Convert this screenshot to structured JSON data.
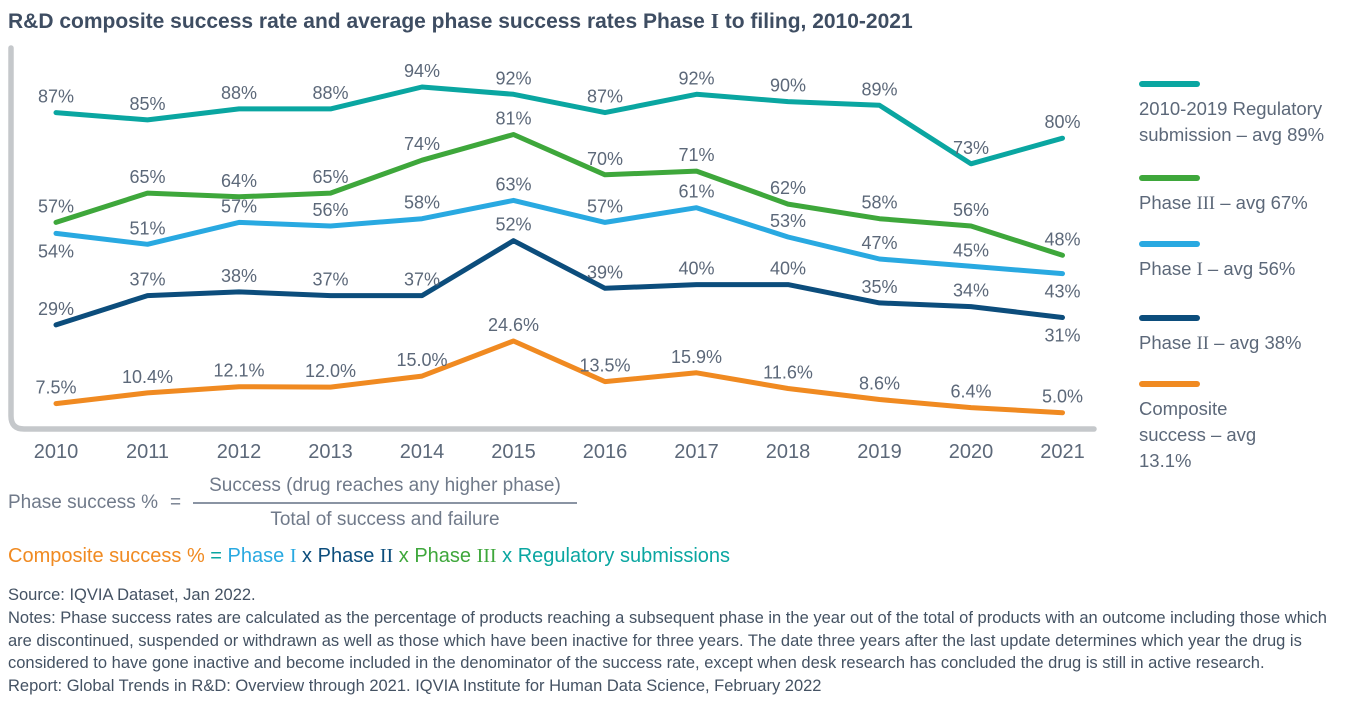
{
  "title": "R&D composite success rate and average phase success rates Phase I to filing, 2010-2021",
  "chart_data": {
    "type": "line",
    "x": [
      "2010",
      "2011",
      "2012",
      "2013",
      "2014",
      "2015",
      "2016",
      "2017",
      "2018",
      "2019",
      "2020",
      "2021"
    ],
    "xlabel": "",
    "ylabel": "",
    "ylim": [
      0,
      100
    ],
    "grid": false,
    "legend_position": "right",
    "colors": {
      "teal": "#0AA6A1",
      "green": "#3EA73B",
      "light_blue": "#29A9E1",
      "navy": "#0C4D7C",
      "orange": "#F08A21",
      "axis": "#C5C8CB",
      "label_text": "#5C6879"
    },
    "series": [
      {
        "name": "Regulatory submission",
        "legend_label": "2010-2019 Regulatory submission – avg 89%",
        "avg": 89,
        "color": "#0AA6A1",
        "values": [
          87,
          85,
          88,
          88,
          94,
          92,
          87,
          92,
          90,
          89,
          73,
          80
        ],
        "labels": [
          "87%",
          "85%",
          "88%",
          "88%",
          "94%",
          "92%",
          "87%",
          "92%",
          "90%",
          "89%",
          "73%",
          "80%"
        ],
        "label_below": []
      },
      {
        "name": "Phase III",
        "legend_label": "Phase III – avg 67%",
        "avg": 67,
        "color": "#3EA73B",
        "values": [
          57,
          65,
          64,
          65,
          74,
          81,
          70,
          71,
          62,
          58,
          56,
          48
        ],
        "labels": [
          "57%",
          "65%",
          "64%",
          "65%",
          "74%",
          "81%",
          "70%",
          "71%",
          "62%",
          "58%",
          "56%",
          "48%"
        ],
        "label_below": []
      },
      {
        "name": "Phase I",
        "legend_label": "Phase I – avg 56%",
        "avg": 56,
        "color": "#29A9E1",
        "values": [
          54,
          51,
          57,
          56,
          58,
          63,
          57,
          61,
          53,
          47,
          45,
          43
        ],
        "labels": [
          "54%",
          "51%",
          "57%",
          "56%",
          "58%",
          "63%",
          "57%",
          "61%",
          "53%",
          "47%",
          "45%",
          "43%"
        ],
        "label_below": [
          0,
          11
        ]
      },
      {
        "name": "Phase II",
        "legend_label": "Phase II – avg 38%",
        "avg": 38,
        "color": "#0C4D7C",
        "values": [
          29,
          37,
          38,
          37,
          37,
          52,
          39,
          40,
          40,
          35,
          34,
          31
        ],
        "labels": [
          "29%",
          "37%",
          "38%",
          "37%",
          "37%",
          "52%",
          "39%",
          "40%",
          "40%",
          "35%",
          "34%",
          "31%"
        ],
        "label_below": [
          11
        ]
      },
      {
        "name": "Composite success",
        "legend_label": "Composite success – avg 13.1%",
        "avg": 13.1,
        "color": "#F08A21",
        "values": [
          7.5,
          10.4,
          12.1,
          12.0,
          15.0,
          24.6,
          13.5,
          15.9,
          11.6,
          8.6,
          6.4,
          5.0
        ],
        "labels": [
          "7.5%",
          "10.4%",
          "12.1%",
          "12.0%",
          "15.0%",
          "24.6%",
          "13.5%",
          "15.9%",
          "11.6%",
          "8.6%",
          "6.4%",
          "5.0%"
        ],
        "label_below": []
      }
    ]
  },
  "formula": {
    "lhs": "Phase success %",
    "equals": "=",
    "numerator": "Success (drug reaches any higher phase)",
    "denominator": "Total of success and failure"
  },
  "composite_formula": {
    "segments": [
      {
        "text": "Composite success %",
        "color": "#F08A21"
      },
      {
        "text": " = ",
        "color": "#0AA6A1"
      },
      {
        "text": "Phase I",
        "color": "#29A9E1"
      },
      {
        "text": " x ",
        "color": "#0C4D7C"
      },
      {
        "text": "Phase II",
        "color": "#0C4D7C"
      },
      {
        "text": " x ",
        "color": "#3EA73B"
      },
      {
        "text": "Phase III",
        "color": "#3EA73B"
      },
      {
        "text": " x ",
        "color": "#0AA6A1"
      },
      {
        "text": "Regulatory submissions",
        "color": "#0AA6A1"
      }
    ]
  },
  "footer": {
    "source": "Source: IQVIA Dataset, Jan 2022.",
    "notes": "Notes: Phase success rates are calculated as the percentage of products reaching a subsequent phase in the year out of the total of products with an outcome including those which are discontinued, suspended or withdrawn as well as those which have been inactive for three years. The date three years after the last update determines which year the drug is considered to have gone inactive and become included in the denominator of the success rate, except when desk research has concluded the drug is still in active research.",
    "report": "Report: Global Trends in R&D: Overview through 2021. IQVIA Institute for Human Data Science, February 2022"
  }
}
